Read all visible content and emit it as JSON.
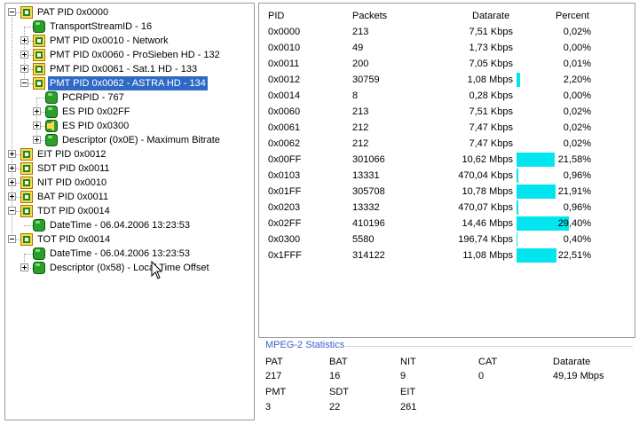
{
  "tree": {
    "items": [
      {
        "label": "PAT PID 0x0000",
        "level": 0,
        "expander": "minus",
        "icon": "table-icon"
      },
      {
        "label": "TransportStreamID - 16",
        "level": 1,
        "expander": "none",
        "icon": "leaf-icon"
      },
      {
        "label": "PMT PID 0x0010 - Network",
        "level": 1,
        "expander": "plus",
        "icon": "table-icon"
      },
      {
        "label": "PMT PID 0x0060 - ProSieben HD - 132",
        "level": 1,
        "expander": "plus",
        "icon": "table-icon"
      },
      {
        "label": "PMT PID 0x0061 - Sat.1 HD - 133",
        "level": 1,
        "expander": "plus",
        "icon": "table-icon"
      },
      {
        "label": "PMT PID 0x0062 - ASTRA HD - 134",
        "level": 1,
        "expander": "minus",
        "icon": "table-icon",
        "selected": true
      },
      {
        "label": "PCRPID - 767",
        "level": 2,
        "expander": "none",
        "icon": "leaf-icon"
      },
      {
        "label": "ES PID 0x02FF",
        "level": 2,
        "expander": "plus",
        "icon": "leaf-icon"
      },
      {
        "label": "ES PID 0x0300",
        "level": 2,
        "expander": "plus",
        "icon": "audio-icon"
      },
      {
        "label": "Descriptor (0x0E) - Maximum Bitrate",
        "level": 2,
        "expander": "plus",
        "icon": "leaf-icon"
      },
      {
        "label": "EIT PID 0x0012",
        "level": 0,
        "expander": "plus",
        "icon": "table-icon"
      },
      {
        "label": "SDT PID 0x0011",
        "level": 0,
        "expander": "plus",
        "icon": "table-icon"
      },
      {
        "label": "NIT PID 0x0010",
        "level": 0,
        "expander": "plus",
        "icon": "table-icon"
      },
      {
        "label": "BAT PID 0x0011",
        "level": 0,
        "expander": "plus",
        "icon": "table-icon"
      },
      {
        "label": "TDT PID 0x0014",
        "level": 0,
        "expander": "minus",
        "icon": "table-icon"
      },
      {
        "label": "DateTime - 06.04.2006 13:23:53",
        "level": 1,
        "expander": "none",
        "icon": "leaf-icon"
      },
      {
        "label": "TOT PID 0x0014",
        "level": 0,
        "expander": "minus",
        "icon": "table-icon"
      },
      {
        "label": "DateTime - 06.04.2006 13:23:53",
        "level": 1,
        "expander": "none",
        "icon": "leaf-icon"
      },
      {
        "label": "Descriptor (0x58) - Local Time Offset",
        "level": 1,
        "expander": "plus",
        "icon": "leaf-icon"
      }
    ]
  },
  "table": {
    "headers": {
      "pid": "PID",
      "packets": "Packets",
      "datarate": "Datarate",
      "percent": "Percent"
    },
    "rows": [
      {
        "pid": "0x0000",
        "packets": "213",
        "datarate": "7,51 Kbps",
        "percent": "0,02%",
        "pct": 0.02
      },
      {
        "pid": "0x0010",
        "packets": "49",
        "datarate": "1,73 Kbps",
        "percent": "0,00%",
        "pct": 0.0
      },
      {
        "pid": "0x0011",
        "packets": "200",
        "datarate": "7,05 Kbps",
        "percent": "0,01%",
        "pct": 0.01
      },
      {
        "pid": "0x0012",
        "packets": "30759",
        "datarate": "1,08 Mbps",
        "percent": "2,20%",
        "pct": 2.2
      },
      {
        "pid": "0x0014",
        "packets": "8",
        "datarate": "0,28 Kbps",
        "percent": "0,00%",
        "pct": 0.0
      },
      {
        "pid": "0x0060",
        "packets": "213",
        "datarate": "7,51 Kbps",
        "percent": "0,02%",
        "pct": 0.02
      },
      {
        "pid": "0x0061",
        "packets": "212",
        "datarate": "7,47 Kbps",
        "percent": "0,02%",
        "pct": 0.02
      },
      {
        "pid": "0x0062",
        "packets": "212",
        "datarate": "7,47 Kbps",
        "percent": "0,02%",
        "pct": 0.02
      },
      {
        "pid": "0x00FF",
        "packets": "301066",
        "datarate": "10,62 Mbps",
        "percent": "21,58%",
        "pct": 21.58
      },
      {
        "pid": "0x0103",
        "packets": "13331",
        "datarate": "470,04 Kbps",
        "percent": "0,96%",
        "pct": 0.96
      },
      {
        "pid": "0x01FF",
        "packets": "305708",
        "datarate": "10,78 Mbps",
        "percent": "21,91%",
        "pct": 21.91
      },
      {
        "pid": "0x0203",
        "packets": "13332",
        "datarate": "470,07 Kbps",
        "percent": "0,96%",
        "pct": 0.96
      },
      {
        "pid": "0x02FF",
        "packets": "410196",
        "datarate": "14,46 Mbps",
        "percent": "29,40%",
        "pct": 29.4
      },
      {
        "pid": "0x0300",
        "packets": "5580",
        "datarate": "196,74 Kbps",
        "percent": "0,40%",
        "pct": 0.4
      },
      {
        "pid": "0x1FFF",
        "packets": "314122",
        "datarate": "11,08 Mbps",
        "percent": "22,51%",
        "pct": 22.51
      }
    ]
  },
  "stats": {
    "title": "MPEG-2 Statistics",
    "pat": {
      "label": "PAT",
      "value": "217"
    },
    "bat": {
      "label": "BAT",
      "value": "16"
    },
    "nit": {
      "label": "NIT",
      "value": "9"
    },
    "cat": {
      "label": "CAT",
      "value": "0"
    },
    "datarate": {
      "label": "Datarate",
      "value": "49,19 Mbps"
    },
    "pmt": {
      "label": "PMT",
      "value": "3"
    },
    "sdt": {
      "label": "SDT",
      "value": "22"
    },
    "eit": {
      "label": "EIT",
      "value": "261"
    }
  },
  "colors": {
    "selection": "#316ac5",
    "bar": "#00e5ee",
    "stats_title": "#3a5fcd"
  }
}
